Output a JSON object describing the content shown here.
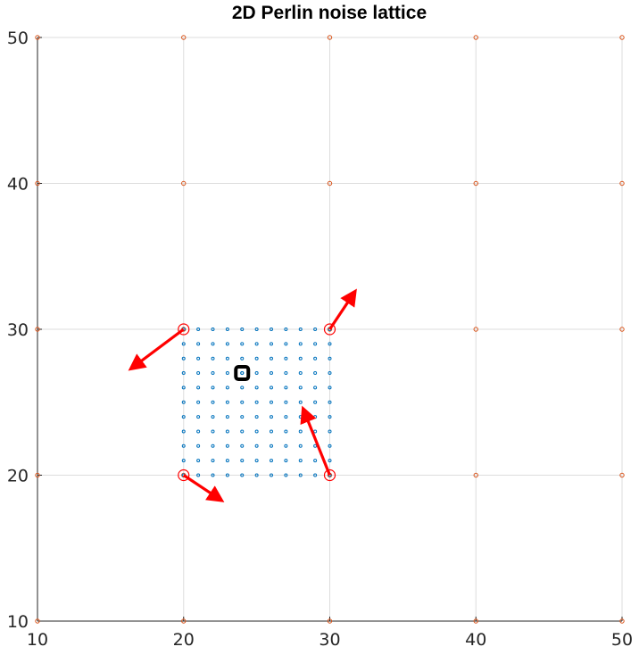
{
  "chart_data": {
    "type": "scatter",
    "title": "2D Perlin noise lattice",
    "xlabel": "",
    "ylabel": "",
    "xlim": [
      10,
      50
    ],
    "ylim": [
      10,
      50
    ],
    "x_ticks": [
      10,
      20,
      30,
      40,
      50
    ],
    "y_ticks": [
      10,
      20,
      30,
      40,
      50
    ],
    "grid": true,
    "series": [
      {
        "role": "lattice-points",
        "color": "#d95319",
        "x_values": [
          10,
          20,
          30,
          40,
          50
        ],
        "y_values": [
          10,
          20,
          30,
          40,
          50
        ]
      },
      {
        "role": "highlighted-cell-corners",
        "color": "#ff0000",
        "points": [
          [
            20,
            20
          ],
          [
            30,
            20
          ],
          [
            20,
            30
          ],
          [
            30,
            30
          ]
        ]
      },
      {
        "role": "sample-grid",
        "color": "#0072bd",
        "x_values": [
          20,
          21,
          22,
          23,
          24,
          25,
          26,
          27,
          28,
          29,
          30
        ],
        "y_values": [
          20,
          21,
          22,
          23,
          24,
          25,
          26,
          27,
          28,
          29,
          30
        ]
      },
      {
        "role": "query-point",
        "color": "#000000",
        "points": [
          [
            24,
            27
          ]
        ]
      }
    ],
    "gradient_vectors": [
      {
        "from": [
          20,
          30
        ],
        "to": [
          16,
          27
        ]
      },
      {
        "from": [
          30,
          30
        ],
        "to": [
          32,
          33
        ]
      },
      {
        "from": [
          20,
          20
        ],
        "to": [
          23,
          18
        ]
      },
      {
        "from": [
          30,
          20
        ],
        "to": [
          28,
          25
        ]
      }
    ],
    "colors": {
      "grid": "#dddddd",
      "axis": "#262626",
      "arrow": "#ff0000"
    }
  }
}
